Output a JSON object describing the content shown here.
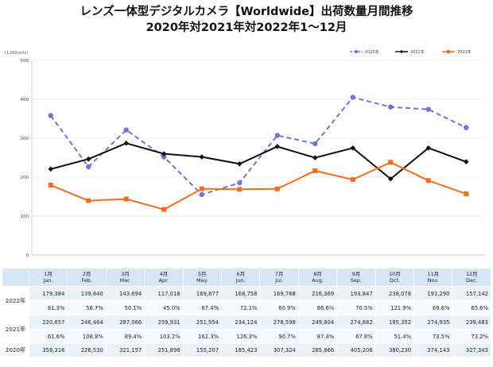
{
  "title_line1": "レンズ一体型デジタルカメラ【Worldwide】出荷数量月間推移",
  "title_line2": "2020年対2021年対2022年1～12月",
  "colors": {
    "s2020": "#7373d0",
    "s2021": "#111111",
    "s2022": "#f26d1f",
    "grid": "#d9d9d9"
  },
  "chart_data": {
    "type": "line",
    "title": "レンズ一体型デジタルカメラ【Worldwide】出荷数量月間推移",
    "subtitle": "2020年対2021年対2022年1～12月",
    "unit_label": "(1,000units)",
    "ylim": [
      0,
      500
    ],
    "yticks": [
      0,
      100,
      200,
      300,
      400,
      500
    ],
    "grid": true,
    "legend_position": "top-right",
    "x": [
      "1",
      "2",
      "3",
      "4",
      "5",
      "6",
      "7",
      "8",
      "9",
      "10",
      "11",
      "12"
    ],
    "series": [
      {
        "name": "2020年",
        "style": "dashed",
        "values": [
          358.3,
          226.5,
          321.2,
          251.9,
          155.2,
          185.4,
          307.3,
          285.9,
          405.2,
          380.2,
          374.1,
          327.3
        ]
      },
      {
        "name": "2021年",
        "style": "solid",
        "values": [
          220.7,
          246.5,
          287.1,
          259.9,
          252.0,
          234.1,
          278.6,
          249.8,
          274.9,
          195.4,
          274.9,
          239.5
        ]
      },
      {
        "name": "2022年",
        "style": "solid",
        "values": [
          179.4,
          139.6,
          143.7,
          117.0,
          169.9,
          168.8,
          169.8,
          216.4,
          193.8,
          238.1,
          191.3,
          157.1
        ]
      }
    ]
  },
  "table": {
    "months": [
      {
        "jp": "1月",
        "en": "Jan."
      },
      {
        "jp": "2月",
        "en": "Feb."
      },
      {
        "jp": "3月",
        "en": "Mar."
      },
      {
        "jp": "4月",
        "en": "Apr."
      },
      {
        "jp": "5月",
        "en": "May."
      },
      {
        "jp": "6月",
        "en": "Jun."
      },
      {
        "jp": "7月",
        "en": "Jul."
      },
      {
        "jp": "8月",
        "en": "Aug."
      },
      {
        "jp": "9月",
        "en": "Sep."
      },
      {
        "jp": "10月",
        "en": "Oct."
      },
      {
        "jp": "11月",
        "en": "Nov."
      },
      {
        "jp": "12月",
        "en": "Dec."
      }
    ],
    "rows": [
      {
        "label": "2022年",
        "values": [
          "179,384",
          "139,640",
          "143,694",
          "117,018",
          "169,877",
          "168,758",
          "169,768",
          "216,369",
          "193,847",
          "238,078",
          "191,290",
          "157,142"
        ],
        "pct": [
          "81.3%",
          "56.7%",
          "50.1%",
          "45.0%",
          "67.4%",
          "72.1%",
          "60.9%",
          "86.6%",
          "70.5%",
          "121.9%",
          "69.6%",
          "65.6%"
        ]
      },
      {
        "label": "2021年",
        "values": [
          "220,657",
          "246,464",
          "287,066",
          "259,931",
          "251,954",
          "234,124",
          "278,598",
          "249,804",
          "274,882",
          "195,352",
          "274,935",
          "239,483"
        ],
        "pct": [
          "61.6%",
          "108.8%",
          "89.4%",
          "103.2%",
          "162.3%",
          "126.3%",
          "90.7%",
          "87.4%",
          "67.8%",
          "51.4%",
          "73.5%",
          "73.2%"
        ]
      },
      {
        "label": "2020年",
        "values": [
          "358,316",
          "226,530",
          "321,157",
          "251,898",
          "155,207",
          "185,423",
          "307,324",
          "285,866",
          "405,206",
          "380,230",
          "374,143",
          "327,343"
        ],
        "pct": []
      }
    ]
  }
}
